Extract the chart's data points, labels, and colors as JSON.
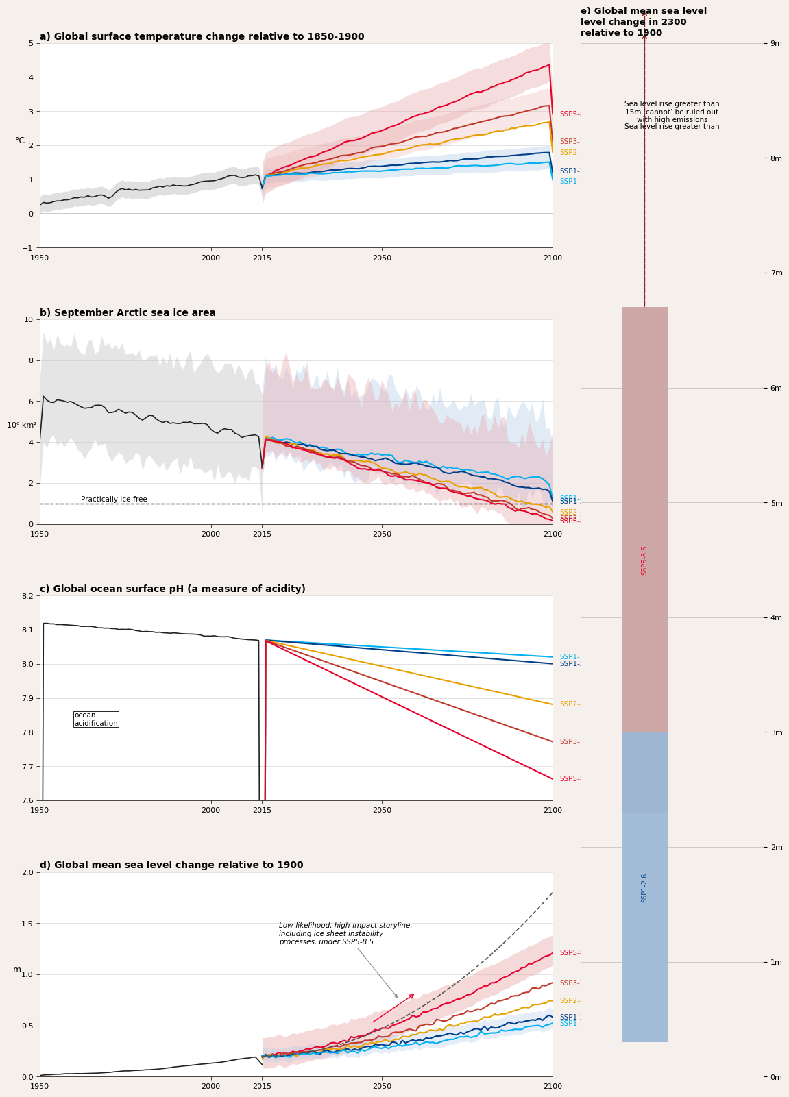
{
  "bg_color": "#f5f0eb",
  "panel_bg": "#ffffff",
  "title_a": "a) Global surface temperature change relative to 1850-1900",
  "title_b": "b) September Arctic sea ice area",
  "title_c": "c) Global ocean surface pH (a measure of acidity)",
  "title_d": "d) Global mean sea level change relative to 1900",
  "title_e": "e) Global mean sea level\nlevel change in 2300\nrelative to 1900",
  "ssp_colors": {
    "SSP1-1.9": "#00b0f0",
    "SSP1-2.6": "#003f87",
    "SSP2-4.5": "#e8a000",
    "SSP3-7.0": "#c0392b",
    "SSP5-8.5": "#e8002d"
  },
  "obs_color": "#222222",
  "obs_band_color": "#cccccc",
  "temp_ylim": [
    -1,
    5
  ],
  "temp_yticks": [
    -1,
    0,
    1,
    2,
    3,
    4,
    5
  ],
  "ice_ylim": [
    0,
    10
  ],
  "ice_yticks": [
    0,
    2,
    4,
    6,
    8,
    10
  ],
  "ph_ylim": [
    7.6,
    8.2
  ],
  "ph_yticks": [
    7.6,
    7.7,
    7.8,
    7.9,
    8.0,
    8.1,
    8.2
  ],
  "sl_ylim": [
    0,
    2
  ],
  "sl_yticks": [
    0,
    0.5,
    1.0,
    1.5,
    2.0
  ],
  "xlim": [
    1950,
    2100
  ],
  "xticks": [
    1950,
    2000,
    2015,
    2050,
    2100
  ],
  "practically_ice_free": 1.0,
  "sea_level_e_ylim": [
    0,
    9
  ],
  "ssp585_bar_e": [
    2.3,
    6.7
  ],
  "ssp126_bar_e": [
    0.3,
    3.0
  ],
  "sea_level_ticks_e": [
    0,
    1,
    2,
    3,
    4,
    5,
    6,
    7,
    8,
    9
  ]
}
